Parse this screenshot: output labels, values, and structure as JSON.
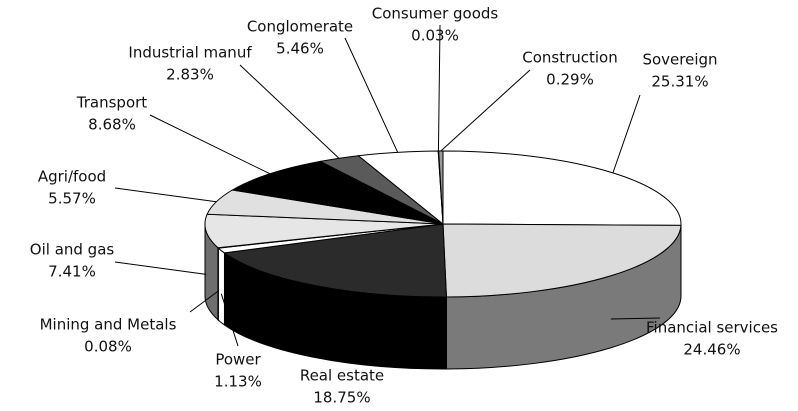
{
  "chart_data": {
    "type": "pie3d",
    "categories": [
      "Sovereign",
      "Financial services",
      "Real estate",
      "Power",
      "Mining and Metals",
      "Oil and gas",
      "Agri/food",
      "Transport",
      "Industrial manuf",
      "Conglomerate",
      "Consumer goods",
      "Construction"
    ],
    "values": [
      25.31,
      24.46,
      18.75,
      1.13,
      0.08,
      7.41,
      5.57,
      8.68,
      2.83,
      5.46,
      0.03,
      0.29
    ],
    "value_labels": [
      "25.31%",
      "24.46%",
      "18.75%",
      "1.13%",
      "0.08%",
      "7.41%",
      "5.57%",
      "8.68%",
      "2.83%",
      "5.46%",
      "0.03%",
      "0.29%"
    ],
    "colors": [
      "#ffffff",
      "#dcdcdc",
      "#2b2b2b",
      "#ffffff",
      "#000000",
      "#e6e6e6",
      "#e0e0e0",
      "#000000",
      "#5a5a5a",
      "#ffffff",
      "#cfcfcf",
      "#9a9a9a"
    ],
    "side_colors": [
      "#bdbdbd",
      "#7a7a7a",
      "#000000",
      "#ffffff",
      "#000000",
      "#6e6e6e",
      "#8a8a8a",
      "#111111",
      "#333333",
      "#bbbbbb",
      "#888888",
      "#555555"
    ]
  }
}
